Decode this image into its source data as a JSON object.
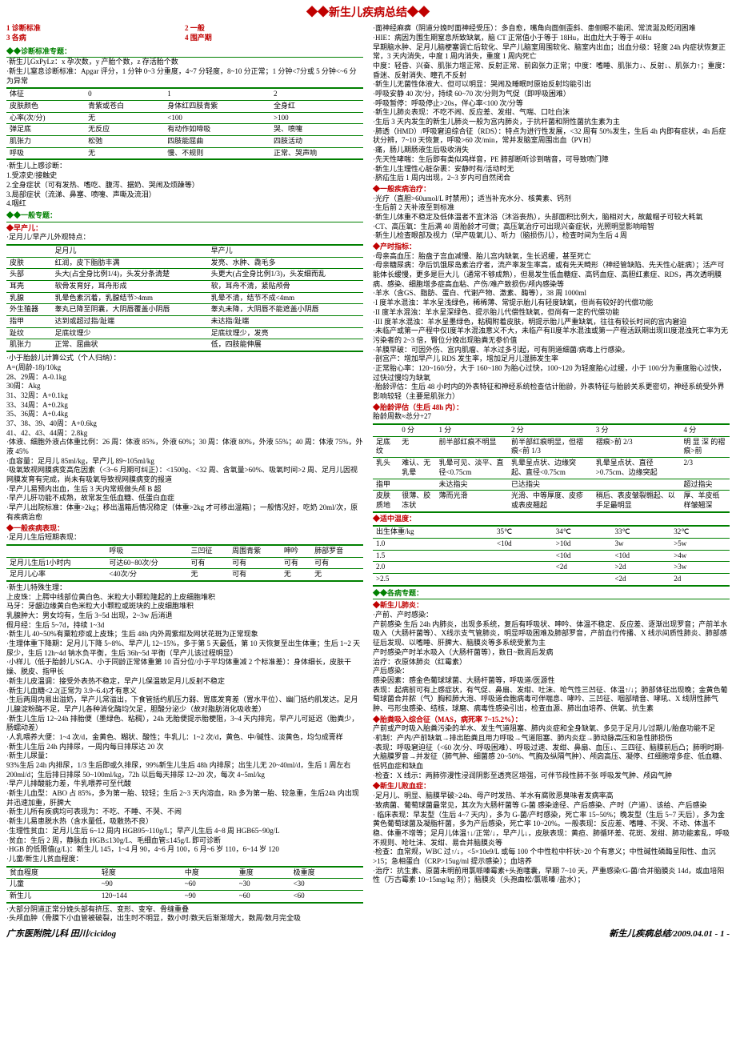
{
  "title": "◆◆新生儿疾病总结◆◆",
  "toc": [
    "1 诊断标准",
    "2 一般",
    "3 各病",
    "4 围产期"
  ],
  "colors": {
    "red": "#c00000",
    "green": "#008000"
  },
  "left": {
    "sec1": "◆◆诊断标准专题：",
    "l1a": "·新生儿GxPyLz：x 孕次数，y 产胎个数，z 存活胎个数",
    "l1b": "·新生儿窒息诊断标准：Apgar 评分，1 分钟 0~3 分重度，4~7 分轻度，8~10 分正常；1 分钟<7分或 5 分钟<~6 分为异常",
    "apgar_head": [
      "体征",
      "0",
      "1",
      "2"
    ],
    "apgar_rows": [
      [
        "皮肤颜色",
        "青紫或苍白",
        "身体红四肢青紫",
        "全身红"
      ],
      [
        "心率(次/分)",
        "无",
        "<100",
        ">100"
      ],
      [
        "弹足底",
        "无反应",
        "有动作如啼吸",
        "哭、喷嚏"
      ],
      [
        "肌张力",
        "松弛",
        "四肢能屈曲",
        "四肢活动"
      ],
      [
        "呼吸",
        "无",
        "慢、不规则",
        "正常、哭声响"
      ]
    ],
    "l1c": "·新生儿上感诊断：",
    "l1c1": "1.受凉史/接触史",
    "l1c2": "2.全身症状（可有发热、嗜吃、腹泻、据奶、哭闹及烦躁等）",
    "l1c3": "3.局部症状（流涕、鼻塞、喷嚏、声嘶及流泪）",
    "l1c4": "4.咽红",
    "sec2": "◆◆一般专题：",
    "sec2a": "◆早产儿：",
    "l2a": "·足月儿/早产儿外观特点：",
    "comp_head": [
      "",
      "足月儿",
      "早产儿"
    ],
    "comp_rows": [
      [
        "皮肤",
        "红润，皮下脂肪丰满",
        "发亮、水肿、毳毛多"
      ],
      [
        "头部",
        "头大(占全身比例1/4)，头发分条清楚",
        "头更大(占全身比例1/3)，头发细而乱"
      ],
      [
        "耳壳",
        "软骨发育好，耳舟形成",
        "软，耳舟不清，紧贴颅骨"
      ],
      [
        "乳腺",
        "乳晕色素沉着，乳腺结节>4mm",
        "乳晕不清，结节不成<4mm"
      ],
      [
        "外生殖器",
        "睾丸已降至阴囊，大阴唇覆盖小阴唇",
        "睾丸未降，大阴唇不能遮盖小阴唇"
      ],
      [
        "指甲",
        "达到或超过指/趾端",
        "未达指/趾端"
      ],
      [
        "趾纹",
        "足底纹理少",
        "足底纹理少，发亮"
      ],
      [
        "肌张力",
        "正常、屈曲状",
        "低，四肢能伸展"
      ]
    ],
    "l2b": "·小于胎龄儿计算公式（个人归纳）：",
    "l2b1": "A=(周龄-18)/10kg",
    "l2b2": "28、29周：A-0.1kg",
    "l2b3": "30周：Akg",
    "l2b4": "31、32周：A+0.1kg",
    "l2b5": "33、34周：A+0.2kg",
    "l2b6": "35、36周：A+0.4kg",
    "l2b7": "37、38、39、40周：A+0.6kg",
    "l2b8": "41、42、43、44周：2.8kg",
    "l2c": "·体液、细胞外液占体重比例：26 周：体液 85%，外液 60%；30 周：体液 80%，外液 55%；40 周：体液 75%，外液 45%",
    "l2d": "·血容量：足月儿 85ml/kg，早产儿 89~105ml/kg",
    "l2e": "·吸氧致视网膜病变高危因素（<3~6 月期可纠正）：<1500g、<32 周、含氧量>60%、吸氧时间>2 周、足月儿因视网膜发育有完成，尚未有吸氧导致视网膜病变的报道",
    "l2f": "·早产儿易预内出血，生后 3 天内常规做头颅 B 超",
    "l2g": "·早产儿肝功能不成熟，故常发生低血糖、低蛋白血症",
    "l2h": "·早产儿出院标准：体重>2kg；移出温箱后情况稳定（体重>2kg 才可移出温箱）；一般情况好，吃奶 20ml/次，原有疾病治愈",
    "sec3": "◆一般疾病表现：",
    "l3a": "·足月儿生后短期表现：",
    "short_head": [
      "",
      "呼吸",
      "三凹征",
      "周围青紫",
      "呻吟",
      "肺部罗音"
    ],
    "short_rows": [
      [
        "足月儿生后1小时内",
        "可达60~80次/分",
        "可有",
        "可有",
        "可有",
        "可有"
      ],
      [
        "足月儿心率",
        "<40次/分",
        "无",
        "可有",
        "无",
        "无"
      ]
    ],
    "l3b": "·新生儿特殊生理：",
    "l3b1": "上皮珠：上腭中线部位黄白色、米粒大小颗粒隆起的上皮细胞堆积",
    "l3b2": "马牙：牙龈边缘黄白色米粒大小颗粒或斑块的上皮细胞堆积",
    "l3b3": "乳腺肿大：男女均有，生后 3~5d 出现，2~3w 后消退",
    "l3b4": "假月经：生后 5~7d，持续 1~3d",
    "l3c": "·新生儿 40~50%有粟粒疹或上皮珠；生后 48h 内外周紫绀及网状花斑为正常现象",
    "l3d": "·生理体重下降期：足月儿下降 5~8%、早产儿 12~15%，多于第 5 天最低，第 10 天恢复至出生体重；生后 1~2 天尿少，生后 12h~4d 钠水负平衡，生后 36h~5d 平衡（早产儿该过程明显）",
    "l3e": "·小样儿（低于胎龄儿/SGA、小于同龄正常体重第 10 百分位/小于平均体重减 2 个标准差）：身体细长，皮肤干燥、脱皮、指甲长",
    "l3f": "·新生儿皮温调：接受外表热不稳定，早产儿保温致足月儿反射不稳定",
    "l3g": "·新生儿血糖<2.2(正常为 3.9~6.4)才有意义",
    "l3h": "·生后两周内易出溢奶，早产儿常溢出，下食管括约肌压力弱、胃底发育差（胃水平位）、幽门括约肌发达。足月儿腺淀粉酶不足，早产儿各种消化酶均欠足，胆酸分泌少（故对脂肪消化吸收差）",
    "l3i": "·新生儿生后 12~24h 排胎便（墨绿色、粘稠），24h 无胎便提示胎梗阻，3~4 天内排完，早产儿可延迟（胎粪少，肠蠕动差）",
    "l3j": "·人乳喂养大便：1~4 次/d，金黄色、糊状、酸性；牛乳儿：1~2 次/d，黄色、中/碱性、淡黄色，均匀成膏样",
    "l3k": "·新生儿生后 24h 内排尿，一周内每日排尿达 20 次",
    "l3l": "·新生儿尿量：",
    "l3l1": "93%生后 24h 内排尿，1/3 生后即或久排尿，99%新生儿生后 48h 内排尿；出生儿无 20~40ml/d，生后 1 周左右 200ml/d；生后排日排尿 50~100ml/kg，72h 以后每天排尿 12~20 次，每次 4~5ml/kg",
    "l3m": "·早产儿排酸能力差，牛乳喂养可至代酸",
    "l3n": "·新生儿血型：ABO 占 85%，多为第一胎、较轻；生后 2~3 天内溶血，Rh 多为第一胎、较急重，生后24h 内出现并迅速加重，肝脾大",
    "l3o": "·新生儿所有疾病均可表现为：不吃、不睡、不哭、不闹",
    "l3p": "·新生儿易患脱水热（含水量低，吸散热不良）",
    "l3q": "·生理性贫血：足月儿生后 6~12 周内 HGB95~110g/L；早产儿生后 4~8 周 HGB65~90g/L",
    "l3r": "·贫血：生后 2 周，静脉血 HGB≤130g/L、毛细血管≤145g/L 即可诊断",
    "l3s": "·HGB 的低限值(g/L)：新生儿 145，1~4 月 90，4~6 月 100，6 月~6 岁 110，6~14 岁 120",
    "l3t": "·儿童/新生儿贫血程度：",
    "anemia_head": [
      "贫血程度",
      "轻度",
      "中度",
      "重度",
      "极重度"
    ],
    "anemia_rows": [
      [
        "儿童",
        "~90",
        "~60",
        "~30",
        "<30"
      ],
      [
        "新生儿",
        "120~144",
        "~90",
        "~60",
        "<60"
      ]
    ],
    "l3u": "·大部分阴道正常分娩头部有挤压、变形、变窄、骨缝重叠",
    "l3v": "·头颅血肿（骨膜下小血管被破裂，出生时不明显，数小时/数天后渐渐增大，数周/数月完全吸"
  },
  "right": {
    "r1": "·面神经麻痹（阴道分娩时面神经受压）：多自愈，嘴角向面侧歪斜、患侧眼不能闭、常流涎及眨闭困难",
    "r2": "·HIE：病因为围生期窒息所致缺氧，脑 CT 正常值小于等于 18Hu，出血灶大于等于 40Hu",
    "r2a": "早期脑水肿、足月儿脑梗塞调亡后软化、早产儿脑室周围软化、脑室内出血；出血分级：轻度 24h 内症状恢复正常，3 天内消失，中度 1 周内消失，重度 1 周内死亡",
    "r2b": "中度：轻昏、兴奋、肌张力增正常、反射正常、前囟张力正常；中度：嗜睡、肌张力↓、反射↓、肌张力↑；重度：昏迷、反射消失、瞳孔不反射",
    "r3": "·新生儿无菌性体液大、但可以明显：哭闹及睡眠时原始反射均能引出",
    "r4": "·呼吸安静 40 次/分，持续 60~70 次/分则为气促（即呼吸困难）",
    "r5": "·呼吸暂停：呼吸停止>20s，伴心率<100 次/分等",
    "r6": "·新生儿肺炎表现：不吃不闹、反应差、发绀、气喘、口吐白沫",
    "r7": "·生后 3 天内发生的新生儿肺炎一般为宫内肺炎，于抗杆菌和阴性菌抗生素为主",
    "r8": "·肺透（HMD）/呼吸窘迫综合征（RDS）：特点为进行性发展，<32 周有 50%发生，生后 4h 内即有症状，4h 后症状分辨，7~10 天恢复，呼吸>60 次/min，常并发脑室周围出血（PVH）",
    "r9": "·痛，肠儿期肠液生后吸收消失",
    "r10": "·先天性哮喘：生后即有类似鸡样音，PE 肺部断听诊到喘音，可导致喷门障",
    "r11": "·新生儿生理性心脏杂裹：安静时有/活动时无",
    "r12": "·脐疝生后 1 周内出现，2~3 岁内可自然闭合",
    "secr1": "◆一般疾病治疗：",
    "r13": "·光疗（直胆>60umol/L 时禁用）；适当补充水分、核黄素、钙剂",
    "r14": "·生后前 2 天补液至到标准",
    "r15": "·新生儿体重不稳定及低体温者不宜沐浴（沐浴丧热），头部面积比例大，脑相对大，故戴帽子可较大耗氧",
    "r16": "·CT、高压氧：生后满 40 周胎龄才可做；高压氧治疗可出现兴奋症状，光照明显影响暗智",
    "r17": "·新生儿检查眼部及视力（早产吸氧儿）、听力（脑损伤儿），检查时间为生后 4 周",
    "secr2": "◆产时指标：",
    "r18": "·母亲高血压：胎盘子宫血减慢、胎儿宫内缺氧，生长迟缓，甚至死亡",
    "r19": "·母亲糖尿病：孕后饥饿尿岛素治疗者，流产率发生率高，或有先天畸形（神经管缺陷、先天性心脏病）；活产可能体长缓慢，更多是巨大儿（通常不够成熟），但易发生低血糖症、高钙血症、高胆红素症、RDS，再次透明膜病、感染、细胞增多症高血粘、产伤/难产致损伤/颅内感染等",
    "r20": "·羊水（含GS、脂肪、蛋白、代谢产物、激素、酶等），38 周 1000ml",
    "r21": "·I 度羊水混浊：羊水呈浅绿色，稀稀薄、常提示胎儿有轻度缺氧，但尚有较好的代偿功能",
    "r22": "·II 度羊水混浊：羊水呈深绿色、提示胎儿代偿性缺氧，但尚有一定的代偿功能",
    "r23": "·III 度羊水混浊：羊水呈墨绿色，粘稠附着皮肤，明提示胎儿严重缺氧，往往有较长时间的宫内窘迫",
    "r24": "·未临产或第一产程中仅I度羊水混浊意义不大，未临产有II度羊水混浊或第一产程活跃期出现III度混浊死亡率为无污染者的 2~3 倍，臀位分娩出现胎粪无参价值",
    "r25": "·羊膜早破：可因外伤、宫内肌瘤、羊水过多引起，可有阴道细菌/病毒上行感染。",
    "r26": "·剖宫产：增加早产儿 RDS 发生率，增加足月儿湿肺发生率",
    "r27": "·正常胎心率：120~160/分，大于 160~180 为胎心过快，100~120 为轻度胎心过缓，小于 100/分为重度胎心过快，过快过慢均为缺氧",
    "r28": "·胎龄评估：生后 48 小时内的外表特征和神经系统检查估计胎龄，外表特征与胎龄关系更密切，神经系统受外界影响较轻（主要是肌张力）",
    "secr3": "◆胎龄评估（生后 48h 内）：",
    "r29": "胎龄周数≈总分+27",
    "gest_head": [
      "",
      "0 分",
      "1 分",
      "2 分",
      "3 分",
      "4 分"
    ],
    "gest_rows": [
      [
        "足底纹",
        "无",
        "前半部红痕不明显",
        "前半部红痕明显，但褶痕<前 1/3",
        "褶痕>前 2/3",
        "明 显 深 的褶痕>前"
      ],
      [
        "乳头",
        "难认、无乳晕",
        "乳晕可见、淡平、直径<0.75cm",
        "乳晕呈点状、边缘突起、直径<0.75cm",
        "乳晕呈点状、直径>0.75cm、边缘突起",
        "2/3"
      ],
      [
        "指甲",
        "",
        "未达指尖",
        "已达指尖",
        "",
        "超过指尖"
      ],
      [
        "皮肤质地",
        "很薄、胶冻状",
        "薄而光滑",
        "光滑、中等厚度、皮疹或表皮翘起",
        "稍后、表皮皱裂翱起、以手足最明显",
        "厚、羊皮纸样皱翘深"
      ]
    ],
    "secr4": "◆适中温度：",
    "temp_head": [
      "出生体重/kg",
      "35℃",
      "34℃",
      "33℃",
      "32℃"
    ],
    "temp_rows": [
      [
        "1.0",
        "<10d",
        ">10d",
        "3w",
        ">5w"
      ],
      [
        "1.5",
        "",
        "<10d",
        "<10d",
        ">4w"
      ],
      [
        "2.0",
        "",
        "<2d",
        ">2d",
        ">3w"
      ],
      [
        ">2.5",
        "",
        "",
        "<2d",
        "2d"
      ]
    ],
    "secr5": "◆◆各病专题：",
    "secr5a": "◆新生儿肺炎：",
    "r30": "·产前、产时感染：",
    "r31": "产前感染 生后 24h 内肺炎，出现多系统，复后有呼吸状、呻吟、体温不稳定、反应差、逐渐出现罗音；产前羊水吸入（大肠杆菌等）、X线示支气管肺炎，明显呼吸困难及肺部罗音，产前血行传播、X 线示间质性肺炎、肺部感征后发现、以嗜睡、肝脾大、脑膜炎等多系统受累为主",
    "r32": "产时感染产时羊水吸入（大肠杆菌等），数日~数周后发病",
    "r33": "治疗：衣原体肺炎（红霉素）",
    "r34": "产后感染：",
    "r35": "感染因素：感金色葡球球菌、大肠杆菌等，呼吸道/医源性",
    "r36": "表现：起病前可有上感症状，有气促、鼻扇、发绀、吐沫、呛气性三凹征、体温↑/↓；肺部体征出现晚；金黄色葡萄球菌合并脓（气）胸和肺大泡、呼吸道合胞病毒可伴喘息、哮吟、三凹征、咽部晴音、哮吼、X 线阴性肺气肿、弓形虫感染、结核，球磨、病毒性感染引出，检查血源、肺出血培养、供氧、抗生素",
    "secr5b": "◆胎粪吸入综合征（MAS，病死率 7~15.2%）：",
    "r37": "产前或产时吸入胎粪污染的羊水、发生气道阻塞、肺内炎症和全身缺氧、多见于足月儿/过期儿/胎盘功能不足",
    "r38": "·机制：产内/产前缺氧→排出胎粪且用力呼吸→气道阻塞、肺内炎症→肺动脉高压和急性肺损伤",
    "r39": "·表现：呼吸窘迫征（<60 次/分、呼吸困难）、呼吸过速、发绀、鼻扇、血压↓、三四征、脑膜前后凸；肺明时期-大脑膜罗音→并发征（肺气肿、细菌感 20~50%、气胸及纵隔气肿）、颅囟高压、凝停、红细胞增多症、低血糖、低钙血症和缺血",
    "r40": "·检查：X 线示：两肺弥漫性浸润阴影至透亮区增强，可伴节段性肺不张 呼吸发气肿、颅囟气肿",
    "secr5c": "◆新生儿败血症：",
    "r41": "·足月儿、明显、脑膜早破>24h、母产时发热、羊水有腐败恶臭味者发病率高",
    "r42": "·致病菌、葡萄球菌最常见，其次为大肠杆菌等 G-菌 感染途径、产后感染、产时（产道）、该给、产后感染",
    "r43": "· 临床表现：早发型（生后 4~7 天内），多为 G-菌/产时感染，死亡率 15~50%；晚发型（生后 5~7 天后），多为金黄色葡萄球菌及凝脂杆菌，多为产后感染，死亡率 10~20%。一般表现：反应差、嗜睡、不哭、不动、体温不稳、体重不增等；足月儿体温↑↓/正常/↓，早产儿↓，皮肤表现：黄疸、肺循环差、花斑、发绀、肺功能紊乱，呼吸不规则、呛吐沫、发绀、易合并脑膜炎等",
    "r44": "·检查：血常规，WBC 过↑/↓，<5×10e9/L 或每 100 个中性粒中杆状>20 个有意义；中性碱性磷酶呈阳性、血沉>15；急相蛋白（CRP>15ug/ml 提示感染）；血培养",
    "r45": "·治疗：抗生素、原菌未明前用氯哌嗪霉素+头孢噻囊，早期 7~10 天，严重感染/G-菌/合并脑膜炎 14d，或血培阳性（万古霉素 10~15mg/kg 剂）；脑膜炎（头孢曲松/氯哌嗪 /盐水）；"
  },
  "footer_left": "广东医附院儿科 田川/cicidog",
  "footer_right": "新生儿疾病总结/2009.04.01 - 1 -"
}
